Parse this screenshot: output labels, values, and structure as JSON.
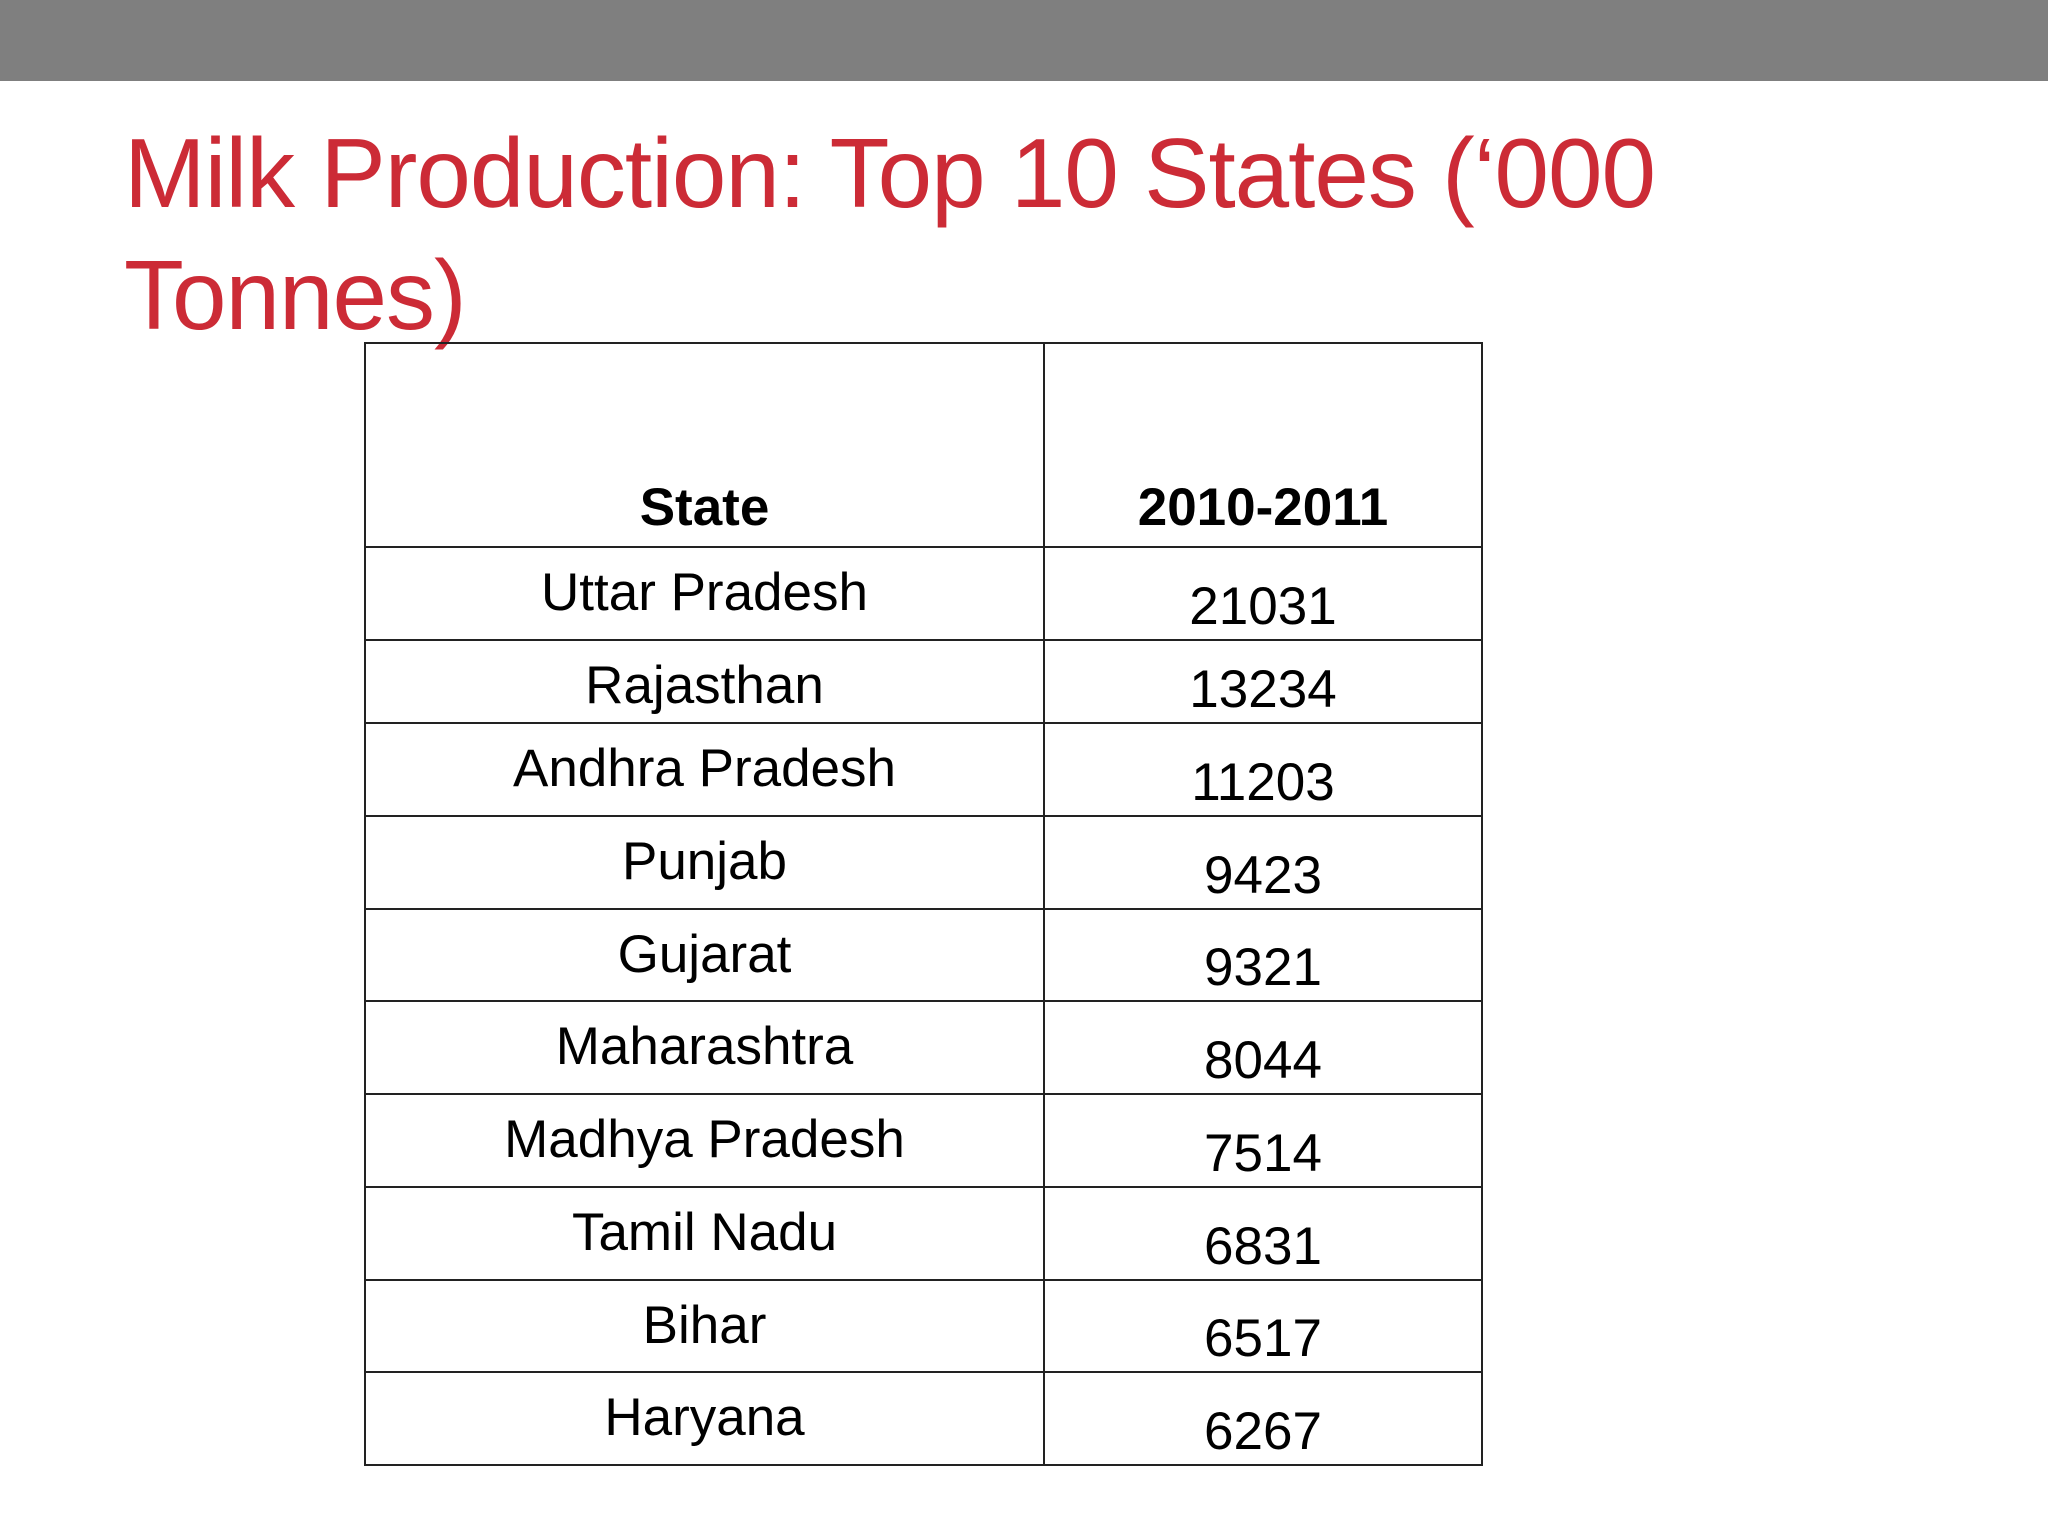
{
  "header": {
    "title": "Milk Production: Top 10 States (‘000 Tonnes)"
  },
  "table": {
    "columns": [
      "State",
      "2010-2011"
    ],
    "rows": [
      [
        "Uttar Pradesh",
        21031
      ],
      [
        "Rajasthan",
        13234
      ],
      [
        "Andhra Pradesh",
        11203
      ],
      [
        "Punjab",
        9423
      ],
      [
        "Gujarat",
        9321
      ],
      [
        "Maharashtra",
        8044
      ],
      [
        "Madhya Pradesh",
        7514
      ],
      [
        "Tamil Nadu",
        6831
      ],
      [
        "Bihar",
        6517
      ],
      [
        "Haryana",
        6267
      ]
    ]
  }
}
